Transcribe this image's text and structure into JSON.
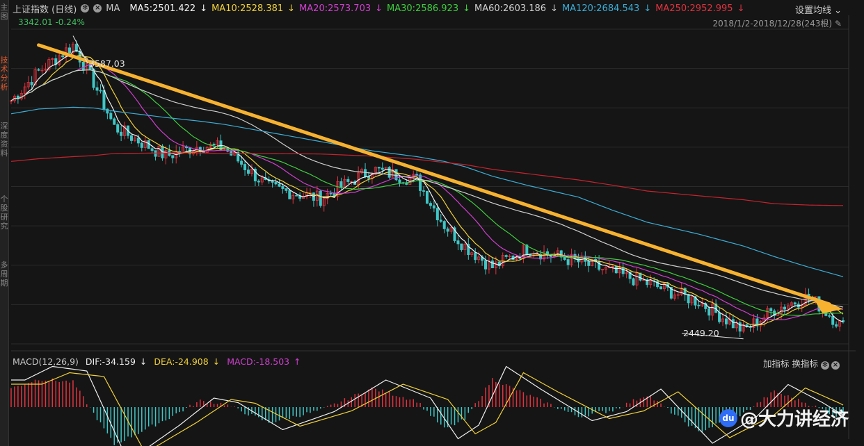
{
  "header": {
    "index_name": "上证指数 (日线)",
    "ma_label": "MA",
    "ma5": "MA5:2501.422",
    "ma10": "MA10:2528.381",
    "ma20": "MA20:2573.703",
    "ma30": "MA30:2586.923",
    "ma60": "MA60:2603.186",
    "ma120": "MA120:2684.543",
    "ma250": "MA250:2952.995",
    "settings_label": "设置均线",
    "price_line": "3342.01 -0.24%",
    "date_range": "2018/1/2-2018/12/28(243根)"
  },
  "sidebar": {
    "tabs": [
      "主图",
      "技术分析",
      "深度资料",
      "个股研究",
      "多周期"
    ]
  },
  "annotations": {
    "high": "3587.03",
    "low": "2449.20"
  },
  "macd": {
    "label": "MACD(12,26,9)",
    "dif": "DIF:-34.159",
    "dea": "DEA:-24.908",
    "macd": "MACD:-18.503",
    "add_indicator": "加指标",
    "switch_indicator": "换指标"
  },
  "watermark": {
    "logo": "du",
    "text": "@大力讲经济"
  },
  "colors": {
    "up": "#e0333f",
    "down": "#3fc6c6",
    "ma5": "#f5f5f5",
    "ma10": "#f2d23a",
    "ma20": "#d040d0",
    "ma30": "#3fce3f",
    "ma60": "#cfcfcf",
    "ma120": "#3aaed8",
    "ma250": "#c8232e",
    "trend": "#f7b230"
  },
  "chart_data": {
    "type": "candlestick",
    "title": "上证指数 (日线)",
    "period": "2018/1/2-2018/12/28",
    "bars": 243,
    "high": 3587.03,
    "low": 2449.2,
    "ylim": [
      2430,
      3620
    ],
    "x": [
      0,
      8,
      18,
      24,
      30,
      45,
      55,
      62,
      75,
      90,
      105,
      118,
      126,
      132,
      140,
      150,
      165,
      175,
      185,
      200,
      213,
      222,
      232,
      242
    ],
    "close": [
      3350,
      3460,
      3560,
      3420,
      3250,
      3140,
      3180,
      3170,
      3020,
      2980,
      3090,
      3050,
      2880,
      2800,
      2720,
      2790,
      2740,
      2700,
      2660,
      2590,
      2480,
      2560,
      2610,
      2494
    ],
    "ma120": [
      3300,
      3318,
      3325,
      3322,
      3310,
      3286,
      3272,
      3260,
      3230,
      3195,
      3160,
      3138,
      3120,
      3100,
      3064,
      3030,
      2985,
      2935,
      2890,
      2845,
      2800,
      2760,
      2720,
      2684
    ],
    "ma250": [
      3120,
      3130,
      3138,
      3142,
      3150,
      3152,
      3152,
      3150,
      3150,
      3148,
      3140,
      3128,
      3116,
      3108,
      3090,
      3074,
      3050,
      3030,
      3008,
      2990,
      2975,
      2960,
      2955,
      2953
    ],
    "macd_hist": [
      30,
      45,
      40,
      -10,
      -60,
      -20,
      10,
      5,
      -25,
      -5,
      30,
      10,
      -35,
      -20,
      45,
      20,
      -15,
      -5,
      20,
      -40,
      -10,
      25,
      5,
      -18
    ]
  }
}
